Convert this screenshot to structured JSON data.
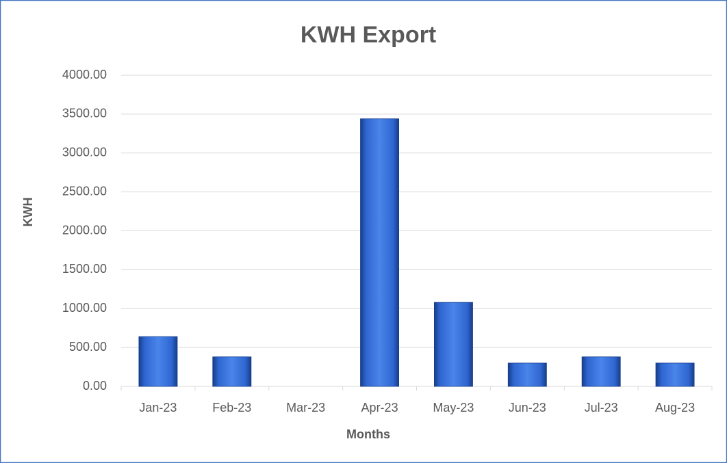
{
  "chart_data": {
    "type": "bar",
    "title": "KWH Export",
    "x_label": "Months",
    "y_label": "KWH",
    "categories": [
      "Jan-23",
      "Feb-23",
      "Mar-23",
      "Apr-23",
      "May-23",
      "Jun-23",
      "Jul-23",
      "Aug-23"
    ],
    "values": [
      640,
      380,
      0,
      3440,
      1080,
      300,
      380,
      300
    ],
    "color": "#2f66d0",
    "ylim": [
      0,
      4000
    ],
    "yticks": [
      {
        "value": 0,
        "label": "0.00"
      },
      {
        "value": 500,
        "label": "500.00"
      },
      {
        "value": 1000,
        "label": "1000.00"
      },
      {
        "value": 1500,
        "label": "1500.00"
      },
      {
        "value": 2000,
        "label": "2000.00"
      },
      {
        "value": 2500,
        "label": "2500.00"
      },
      {
        "value": 3000,
        "label": "3000.00"
      },
      {
        "value": 3500,
        "label": "3500.00"
      },
      {
        "value": 4000,
        "label": "4000.00"
      }
    ],
    "grid": true
  }
}
